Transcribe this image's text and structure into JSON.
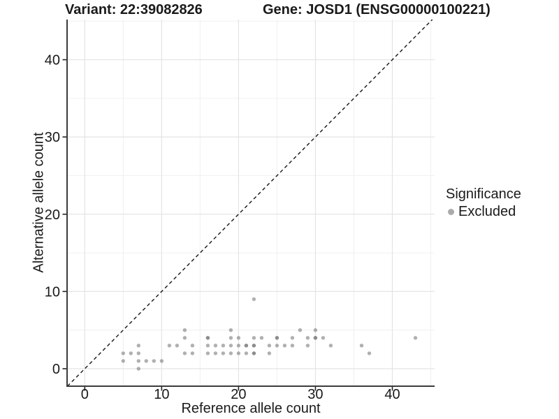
{
  "chart_data": {
    "type": "scatter",
    "titles": {
      "variant": "Variant: 22:39082826",
      "gene": "Gene: JOSD1 (ENSG00000100221)"
    },
    "xlabel": "Reference allele count",
    "ylabel": "Alternative allele count",
    "xlim": [
      -2.3,
      45.5
    ],
    "ylim": [
      -2.26,
      45.2
    ],
    "x_major_ticks": [
      0,
      10,
      20,
      30,
      40
    ],
    "x_minor_ticks": [
      5,
      15,
      25,
      35,
      45
    ],
    "y_major_ticks": [
      0,
      10,
      20,
      30,
      40
    ],
    "y_minor_ticks": [
      5,
      15,
      25,
      35,
      45
    ],
    "grid": "on",
    "identity_line": {
      "equation": "y = x",
      "style": "dashed",
      "color": "#151515"
    },
    "legend": {
      "position": "right",
      "title": "Significance",
      "items": [
        {
          "label": "Excluded",
          "color": "#ababab"
        }
      ]
    },
    "series": [
      {
        "name": "Excluded",
        "color": "#6f6f6f",
        "opacity": 0.55,
        "point_radius": 2.7,
        "points_format": "[reference_allele_count, alternative_allele_count, overlap_count]",
        "points": [
          [
            7,
            0,
            1
          ],
          [
            5,
            1,
            1
          ],
          [
            7,
            1,
            1
          ],
          [
            8,
            1,
            1
          ],
          [
            9,
            1,
            1
          ],
          [
            10,
            1,
            1
          ],
          [
            5,
            2,
            1
          ],
          [
            6,
            2,
            1
          ],
          [
            7,
            2,
            1
          ],
          [
            13,
            2,
            1
          ],
          [
            14,
            2,
            1
          ],
          [
            16,
            2,
            1
          ],
          [
            17,
            2,
            1
          ],
          [
            18,
            2,
            1
          ],
          [
            19,
            2,
            1
          ],
          [
            20,
            2,
            1
          ],
          [
            21,
            2,
            1
          ],
          [
            22,
            2,
            2
          ],
          [
            24,
            2,
            1
          ],
          [
            37,
            2,
            1
          ],
          [
            7,
            3,
            1
          ],
          [
            11,
            3,
            1
          ],
          [
            12,
            3,
            1
          ],
          [
            14,
            3,
            1
          ],
          [
            16,
            3,
            1
          ],
          [
            17,
            3,
            1
          ],
          [
            18,
            3,
            1
          ],
          [
            19,
            3,
            1
          ],
          [
            20,
            3,
            1
          ],
          [
            21,
            3,
            2
          ],
          [
            22,
            3,
            2
          ],
          [
            24,
            3,
            1
          ],
          [
            25,
            3,
            1
          ],
          [
            26,
            3,
            1
          ],
          [
            27,
            3,
            1
          ],
          [
            29,
            3,
            1
          ],
          [
            32,
            3,
            1
          ],
          [
            36,
            3,
            1
          ],
          [
            13,
            4,
            1
          ],
          [
            16,
            4,
            2
          ],
          [
            19,
            4,
            1
          ],
          [
            20,
            4,
            1
          ],
          [
            22,
            4,
            1
          ],
          [
            23,
            4,
            1
          ],
          [
            25,
            4,
            2
          ],
          [
            27,
            4,
            1
          ],
          [
            29,
            4,
            1
          ],
          [
            30,
            4,
            2
          ],
          [
            31,
            4,
            1
          ],
          [
            43,
            4,
            1
          ],
          [
            13,
            5,
            1
          ],
          [
            19,
            5,
            1
          ],
          [
            28,
            5,
            1
          ],
          [
            30,
            5,
            1
          ],
          [
            22,
            9,
            1
          ]
        ]
      }
    ],
    "colors": {
      "background": "#ffffff",
      "major_grid": "#e4e4e4",
      "minor_grid": "#f0f0f0",
      "axis_line": "#3c3c3c",
      "tick_text": "#1a1a1a"
    }
  }
}
